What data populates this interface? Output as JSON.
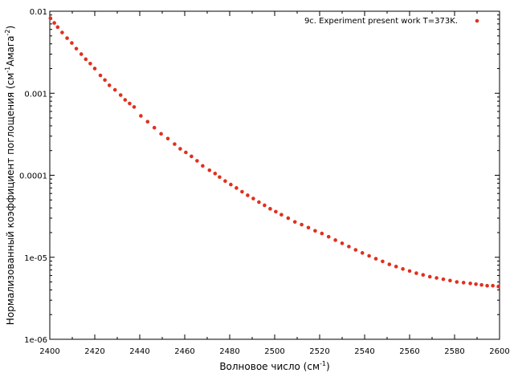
{
  "chart_data": {
    "type": "scatter",
    "title": "",
    "xlabel": "Волновое число (см",
    "xlabel_sup": "-1",
    "xlabel_tail": ")",
    "ylabel_parts": [
      "Нормализованный коэффициент поглощения (см",
      "-1",
      "Амага",
      "-2",
      ")"
    ],
    "x_scale": "linear",
    "y_scale": "log",
    "xlim": [
      2400,
      2600
    ],
    "ylim": [
      1e-06,
      0.01
    ],
    "x_ticks": [
      2400,
      2420,
      2440,
      2460,
      2480,
      2500,
      2520,
      2540,
      2560,
      2580,
      2600
    ],
    "y_ticks": [
      1e-06,
      1e-05,
      0.0001,
      0.001,
      0.01
    ],
    "y_tick_labels": [
      "1e-06",
      "1e-05",
      "0.0001",
      "0.001",
      "0.01"
    ],
    "grid": false,
    "legend_position": "top-right",
    "series": [
      {
        "name": "9c. Experiment  present work T=373K.",
        "color": "#e0301e",
        "x": [
          2400.3,
          2402.0,
          2403.5,
          2405.5,
          2407.7,
          2409.8,
          2411.8,
          2414.0,
          2416.0,
          2418.0,
          2420.0,
          2422.5,
          2424.5,
          2426.5,
          2429.0,
          2431.5,
          2433.5,
          2435.5,
          2437.5,
          2440.5,
          2443.5,
          2446.5,
          2449.5,
          2452.5,
          2455.5,
          2458.0,
          2460.5,
          2463.0,
          2465.5,
          2468.0,
          2471.0,
          2473.5,
          2475.5,
          2478.0,
          2480.5,
          2483.0,
          2485.5,
          2488.0,
          2490.5,
          2493.0,
          2495.5,
          2498.0,
          2500.5,
          2503.0,
          2506.0,
          2509.0,
          2512.0,
          2515.0,
          2518.0,
          2521.0,
          2524.0,
          2527.0,
          2530.0,
          2533.0,
          2536.0,
          2539.0,
          2542.0,
          2545.0,
          2548.0,
          2551.0,
          2554.0,
          2557.0,
          2560.0,
          2563.0,
          2566.0,
          2569.0,
          2572.0,
          2575.0,
          2578.0,
          2581.0,
          2584.0,
          2587.0,
          2589.5,
          2592.0,
          2594.5,
          2597.0,
          2599.5
        ],
        "y": [
          0.0082,
          0.0072,
          0.0064,
          0.0055,
          0.0047,
          0.0041,
          0.0035,
          0.003,
          0.0026,
          0.0023,
          0.002,
          0.00165,
          0.00145,
          0.00125,
          0.0011,
          0.00095,
          0.00083,
          0.00075,
          0.00068,
          0.00053,
          0.00045,
          0.00038,
          0.00032,
          0.00028,
          0.00024,
          0.00021,
          0.00019,
          0.00017,
          0.00015,
          0.00013,
          0.000115,
          0.000105,
          9.5e-05,
          8.5e-05,
          7.7e-05,
          7e-05,
          6.3e-05,
          5.7e-05,
          5.2e-05,
          4.7e-05,
          4.3e-05,
          3.9e-05,
          3.6e-05,
          3.3e-05,
          3e-05,
          2.7e-05,
          2.5e-05,
          2.3e-05,
          2.1e-05,
          1.95e-05,
          1.78e-05,
          1.62e-05,
          1.48e-05,
          1.35e-05,
          1.23e-05,
          1.13e-05,
          1.04e-05,
          9.6e-06,
          8.9e-06,
          8.2e-06,
          7.7e-06,
          7.2e-06,
          6.8e-06,
          6.4e-06,
          6.1e-06,
          5.8e-06,
          5.6e-06,
          5.4e-06,
          5.2e-06,
          5e-06,
          4.9e-06,
          4.8e-06,
          4.7e-06,
          4.6e-06,
          4.5e-06,
          4.5e-06,
          4.4e-06
        ]
      }
    ]
  }
}
